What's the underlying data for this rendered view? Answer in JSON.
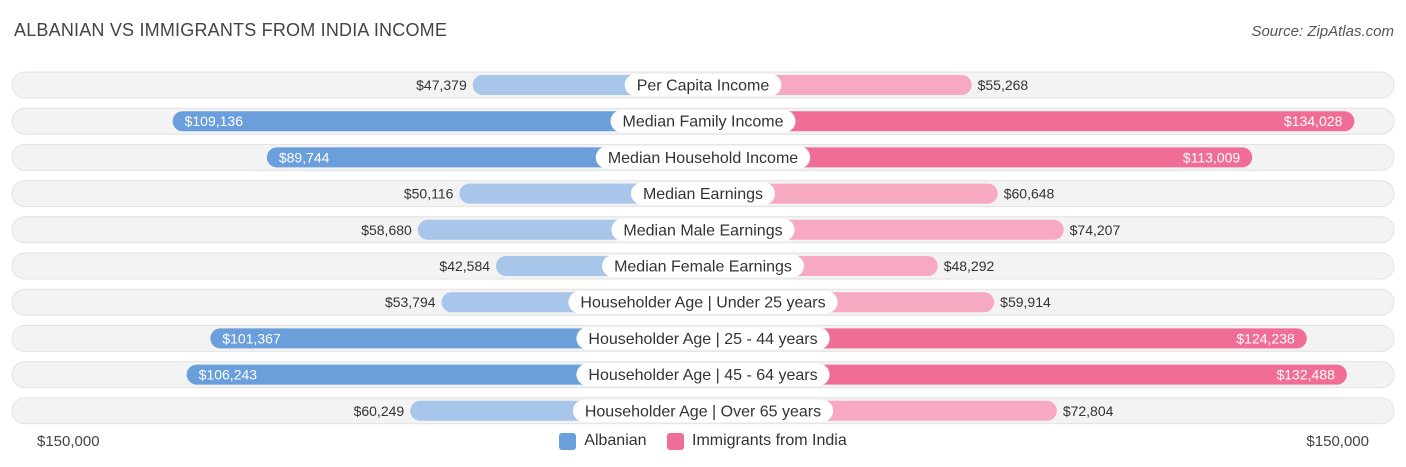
{
  "title": "ALBANIAN VS IMMIGRANTS FROM INDIA INCOME",
  "source": "Source: ZipAtlas.com",
  "colors": {
    "left_strong": "#6a9fdc",
    "left_light": "#a7c6ea",
    "right_strong": "#f06e96",
    "right_light": "#f6a9c1",
    "track": "#f1f1f1"
  },
  "chart_data": {
    "type": "bar",
    "orientation": "diverging-horizontal",
    "max_value": 150000,
    "axis_left_label": "$150,000",
    "axis_right_label": "$150,000",
    "categories": [
      "Per Capita Income",
      "Median Family Income",
      "Median Household Income",
      "Median Earnings",
      "Median Male Earnings",
      "Median Female Earnings",
      "Householder Age | Under 25 years",
      "Householder Age | 25 - 44 years",
      "Householder Age | 45 - 64 years",
      "Householder Age | Over 65 years"
    ],
    "series": [
      {
        "name": "Albanian",
        "side": "left",
        "values": [
          47379,
          109136,
          89744,
          50116,
          58680,
          42584,
          53794,
          101367,
          106243,
          60249
        ],
        "labels": [
          "$47,379",
          "$109,136",
          "$89,744",
          "$50,116",
          "$58,680",
          "$42,584",
          "$53,794",
          "$101,367",
          "$106,243",
          "$60,249"
        ]
      },
      {
        "name": "Immigrants from India",
        "side": "right",
        "values": [
          55268,
          134028,
          113009,
          60648,
          74207,
          48292,
          59914,
          124238,
          132488,
          72804
        ],
        "labels": [
          "$55,268",
          "$134,028",
          "$113,009",
          "$60,648",
          "$74,207",
          "$48,292",
          "$59,914",
          "$124,238",
          "$132,488",
          "$72,804"
        ]
      }
    ],
    "legend": [
      "Albanian",
      "Immigrants from India"
    ],
    "legend_position": "bottom-center"
  }
}
